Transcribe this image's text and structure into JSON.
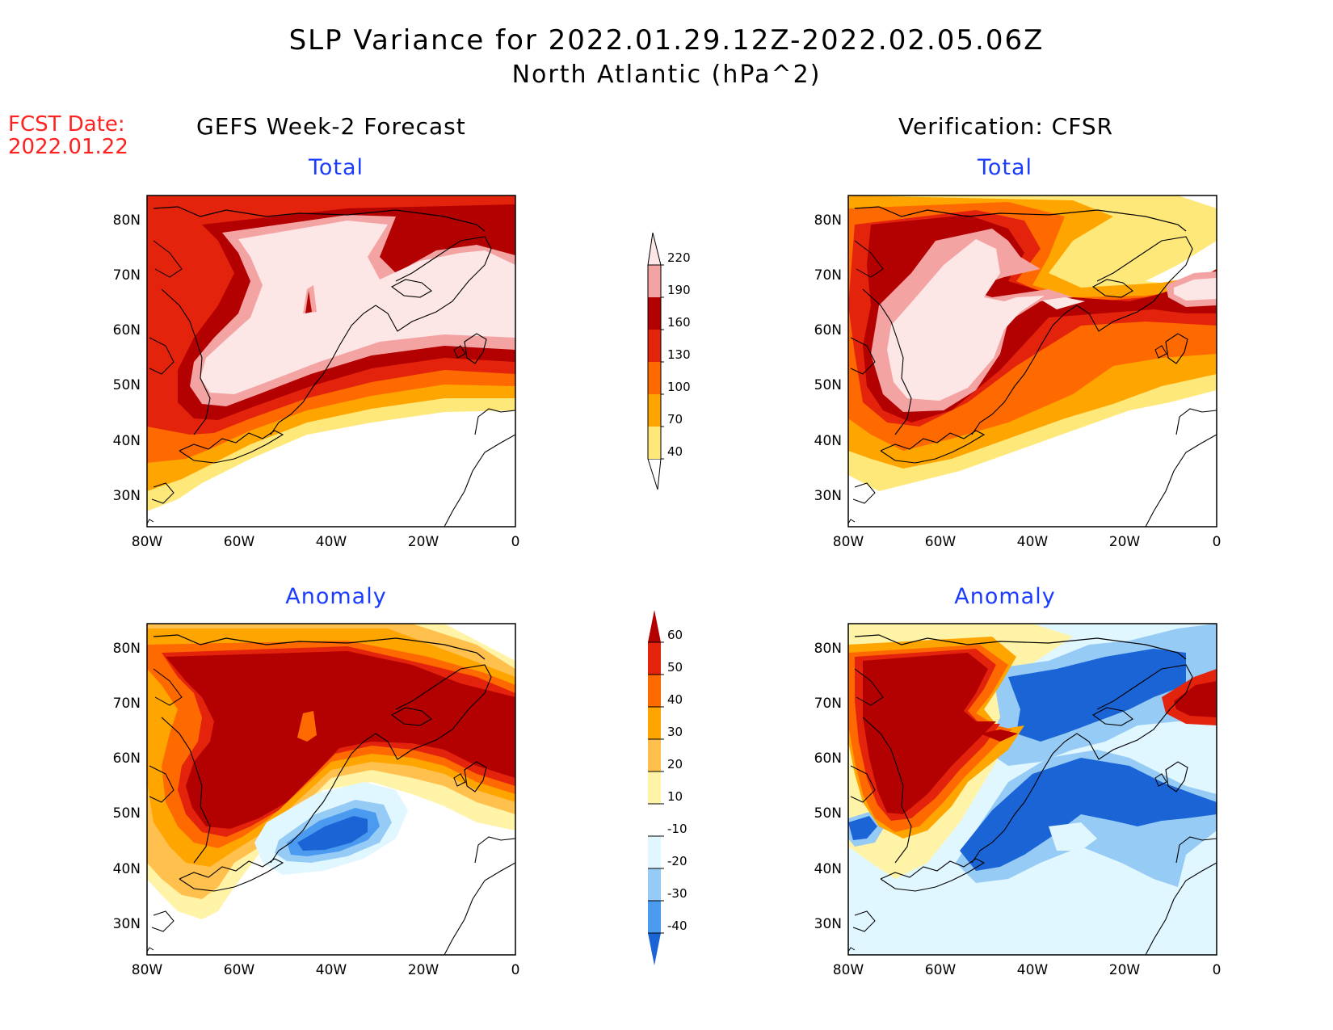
{
  "title": {
    "line1": "SLP Variance for 2022.01.29.12Z-2022.02.05.06Z",
    "line2": "North Atlantic (hPa^2)"
  },
  "fcst_date": {
    "label": "FCST Date:",
    "value": "2022.01.22"
  },
  "columns": {
    "left_header": "GEFS Week-2 Forecast",
    "right_header": "Verification: CFSR"
  },
  "panels": [
    {
      "id": "fcst-total",
      "subtitle": "Total"
    },
    {
      "id": "verif-total",
      "subtitle": "Total"
    },
    {
      "id": "fcst-anomaly",
      "subtitle": "Anomaly"
    },
    {
      "id": "verif-anomaly",
      "subtitle": "Anomaly"
    }
  ],
  "axes": {
    "lon_labels": [
      "80W",
      "60W",
      "40W",
      "20W",
      "0"
    ],
    "lat_labels": [
      "80N",
      "70N",
      "60N",
      "50N",
      "40N",
      "30N"
    ],
    "lon_range": [
      -80,
      0
    ],
    "lat_range": [
      25,
      85
    ]
  },
  "colorbars": {
    "total": {
      "levels": [
        "40",
        "70",
        "100",
        "130",
        "160",
        "190",
        "220"
      ],
      "colors": [
        "#ffe87a",
        "#ffa500",
        "#ff6a00",
        "#e3230c",
        "#b30000",
        "#f4a3a3",
        "#fde6e6"
      ]
    },
    "anomaly": {
      "levels": [
        "60",
        "50",
        "40",
        "30",
        "20",
        "10",
        "-10",
        "-20",
        "-30",
        "-40"
      ],
      "colors": [
        "#b30000",
        "#e3230c",
        "#ff6a00",
        "#ffa500",
        "#ffc04d",
        "#fff3a8",
        "#ffffff",
        "#e0f7ff",
        "#96cbf5",
        "#4a9af0",
        "#1a64d6"
      ]
    }
  },
  "colors": {
    "title_text": "#000000",
    "fcst_date": "#ff2020",
    "subtitle": "#1a3cff"
  }
}
